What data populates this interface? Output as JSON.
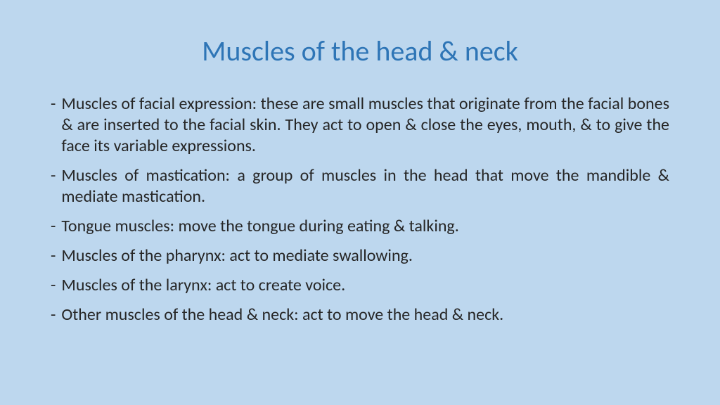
{
  "slide": {
    "title": "Muscles of the head & neck",
    "title_color": "#2e75b6",
    "title_fontsize": 40,
    "background_color": "#bdd7ee",
    "body_color": "#262626",
    "body_fontsize": 24,
    "bullets": [
      "Muscles of facial expression: these are small muscles that originate from the facial bones & are inserted to the facial skin. They act to open & close the eyes, mouth, & to give the face its variable expressions.",
      "Muscles of mastication: a group of muscles in the head that move the mandible & mediate mastication.",
      "Tongue muscles: move the tongue during eating & talking.",
      "Muscles of the pharynx: act to mediate swallowing.",
      "Muscles of the larynx: act to create voice.",
      "Other muscles of the head & neck: act to move the head & neck."
    ],
    "dash": "-"
  }
}
